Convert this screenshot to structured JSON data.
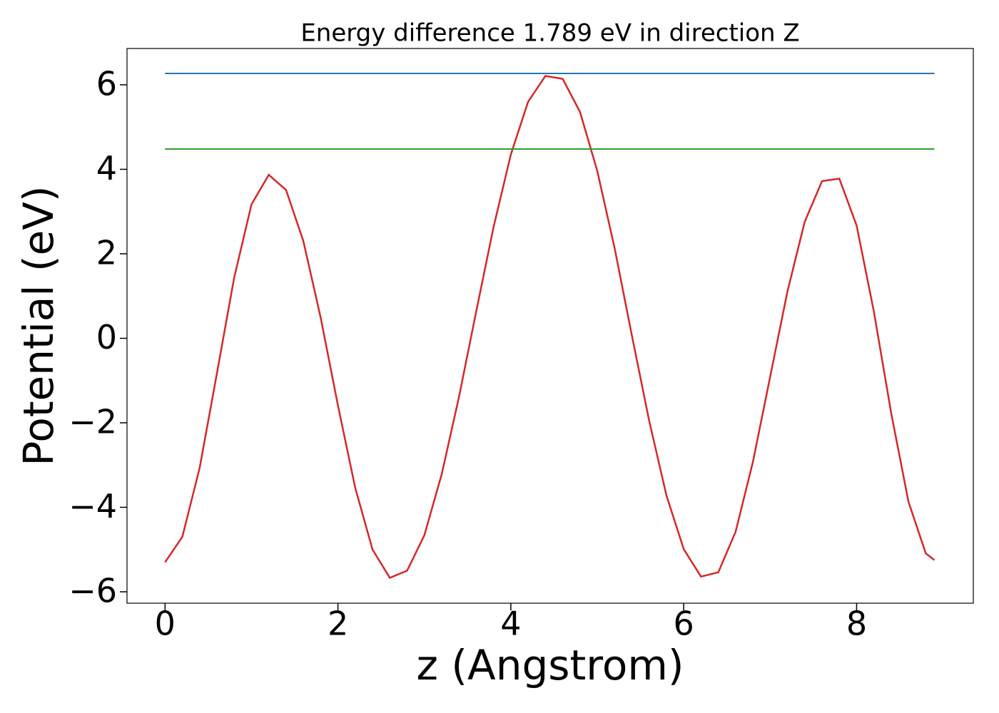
{
  "chart_data": {
    "type": "line",
    "title": "Energy difference 1.789 eV in direction Z",
    "xlabel": "z (Angstrom)",
    "ylabel": "Potential (eV)",
    "series": [
      {
        "color": "#d62728",
        "x": [
          0,
          0.2,
          0.4,
          0.6,
          0.8,
          1.0,
          1.2,
          1.4,
          1.6,
          1.8,
          2.0,
          2.2,
          2.4,
          2.6,
          2.8,
          3.0,
          3.2,
          3.4,
          3.6,
          3.8,
          4.0,
          4.2,
          4.4,
          4.6,
          4.8,
          5.0,
          5.2,
          5.4,
          5.6,
          5.8,
          6.0,
          6.2,
          6.4,
          6.6,
          6.8,
          7.0,
          7.2,
          7.4,
          7.6,
          7.8,
          8.0,
          8.2,
          8.4,
          8.6,
          8.8,
          8.9
        ],
        "values": [
          -5.3,
          -4.7,
          -3.07,
          -0.83,
          1.44,
          3.17,
          3.87,
          3.51,
          2.3,
          0.49,
          -1.59,
          -3.54,
          -5.0,
          -5.67,
          -5.5,
          -4.66,
          -3.22,
          -1.39,
          0.64,
          2.63,
          4.35,
          5.6,
          6.21,
          6.14,
          5.36,
          3.96,
          2.14,
          0.07,
          -1.95,
          -3.72,
          -4.99,
          -5.64,
          -5.54,
          -4.58,
          -2.93,
          -0.91,
          1.11,
          2.76,
          3.72,
          3.78,
          2.67,
          0.63,
          -1.77,
          -3.87,
          -5.09,
          -5.25
        ]
      },
      {
        "color": "#1f77b4",
        "x": [
          0,
          8.9
        ],
        "values": [
          6.27,
          6.27
        ]
      },
      {
        "color": "#2ca02c",
        "x": [
          0,
          8.9
        ],
        "values": [
          4.48,
          4.48
        ]
      }
    ],
    "xlim": [
      -0.44,
      9.35
    ],
    "ylim": [
      -6.27,
      6.86
    ],
    "xticks": [
      0,
      2,
      4,
      6,
      8
    ],
    "yticks": [
      {
        "value": -6,
        "label": "−6"
      },
      {
        "value": -4,
        "label": "−4"
      },
      {
        "value": -2,
        "label": "−2"
      },
      0,
      2,
      4,
      6
    ],
    "grid": false
  }
}
